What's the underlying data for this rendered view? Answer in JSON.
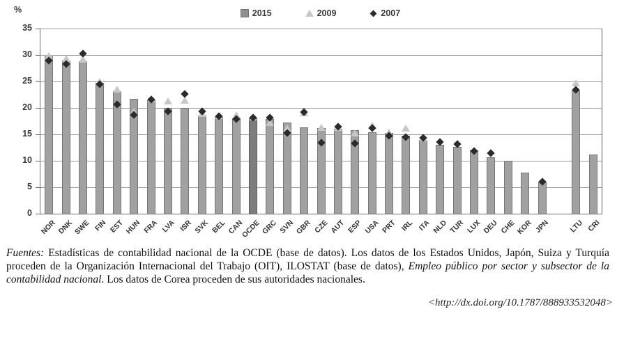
{
  "chart": {
    "unit_label": "%",
    "legend": [
      {
        "label": "2015",
        "marker": "square"
      },
      {
        "label": "2009",
        "marker": "triangle"
      },
      {
        "label": "2007",
        "marker": "diamond"
      }
    ],
    "y_axis": {
      "min": 0,
      "max": 35,
      "step": 5,
      "ticks": [
        0,
        5,
        10,
        15,
        20,
        25,
        30,
        35
      ]
    }
  },
  "chart_data": {
    "type": "bar",
    "title": "",
    "xlabel": "",
    "ylabel": "%",
    "ylim": [
      0,
      35
    ],
    "grid": true,
    "legend_position": "top-center",
    "emphasized_category": "OCDE",
    "categories": [
      "NOR",
      "DNK",
      "SWE",
      "FIN",
      "EST",
      "HUN",
      "FRA",
      "LVA",
      "ISR",
      "SVK",
      "BEL",
      "CAN",
      "OCDE",
      "GRC",
      "SVN",
      "GBR",
      "CZE",
      "AUT",
      "ESP",
      "USA",
      "PRT",
      "IRL",
      "ITA",
      "NLD",
      "TUR",
      "LUX",
      "DEU",
      "CHE",
      "KOR",
      "JPN",
      "",
      "LTU",
      "CRI"
    ],
    "series": [
      {
        "name": "2015",
        "style": "bar",
        "values": [
          29.8,
          29.0,
          28.8,
          24.8,
          23.1,
          21.7,
          21.4,
          20.0,
          20.0,
          18.6,
          18.3,
          18.0,
          18.0,
          17.9,
          17.2,
          16.3,
          16.2,
          16.0,
          15.8,
          15.4,
          15.2,
          14.8,
          13.9,
          13.0,
          12.6,
          12.0,
          10.7,
          10.0,
          7.7,
          6.0,
          null,
          23.3,
          11.2
        ]
      },
      {
        "name": "2009",
        "style": "triangle",
        "values": [
          29.9,
          29.4,
          29.2,
          25.0,
          23.6,
          19.3,
          21.7,
          21.3,
          21.5,
          18.9,
          18.5,
          18.7,
          18.3,
          17.3,
          16.2,
          19.1,
          16.3,
          16.3,
          15.2,
          16.7,
          15.4,
          16.2,
          14.3,
          null,
          null,
          null,
          null,
          null,
          null,
          null,
          null,
          24.7,
          null
        ]
      },
      {
        "name": "2007",
        "style": "diamond",
        "values": [
          28.9,
          28.3,
          30.3,
          24.5,
          20.6,
          18.7,
          21.6,
          19.4,
          22.6,
          19.3,
          18.4,
          17.9,
          18.1,
          18.2,
          15.3,
          19.2,
          13.4,
          16.4,
          13.3,
          16.2,
          14.7,
          14.5,
          14.4,
          13.6,
          13.1,
          11.9,
          11.4,
          null,
          null,
          6.1,
          null,
          23.4,
          null
        ]
      }
    ]
  },
  "colors": {
    "bar_fill": "#a1a1a1",
    "bar_border": "#757575",
    "ocde_bar_fill": "#7d7d7d",
    "triangle_2009": "#c7c7c7",
    "diamond_2007": "#2b2b2b",
    "gridline": "#9a9a9a"
  },
  "footer": {
    "fuentes_label": "Fuentes:",
    "text_1": " Estadísticas de contabilidad nacional de la OCDE (base de datos). Los datos de los Estados Unidos, Japón, Suiza y Turquía proceden de la Organización Internacional del Trabajo (OIT), ILOSTAT (base de datos), ",
    "text_italic": "Empleo público por sector y subsector de la contabilidad nacional",
    "text_2": ". Los datos de Corea proceden de sus autoridades nacionales.",
    "doi": "<http://dx.doi.org/10.1787/888933532048>"
  }
}
